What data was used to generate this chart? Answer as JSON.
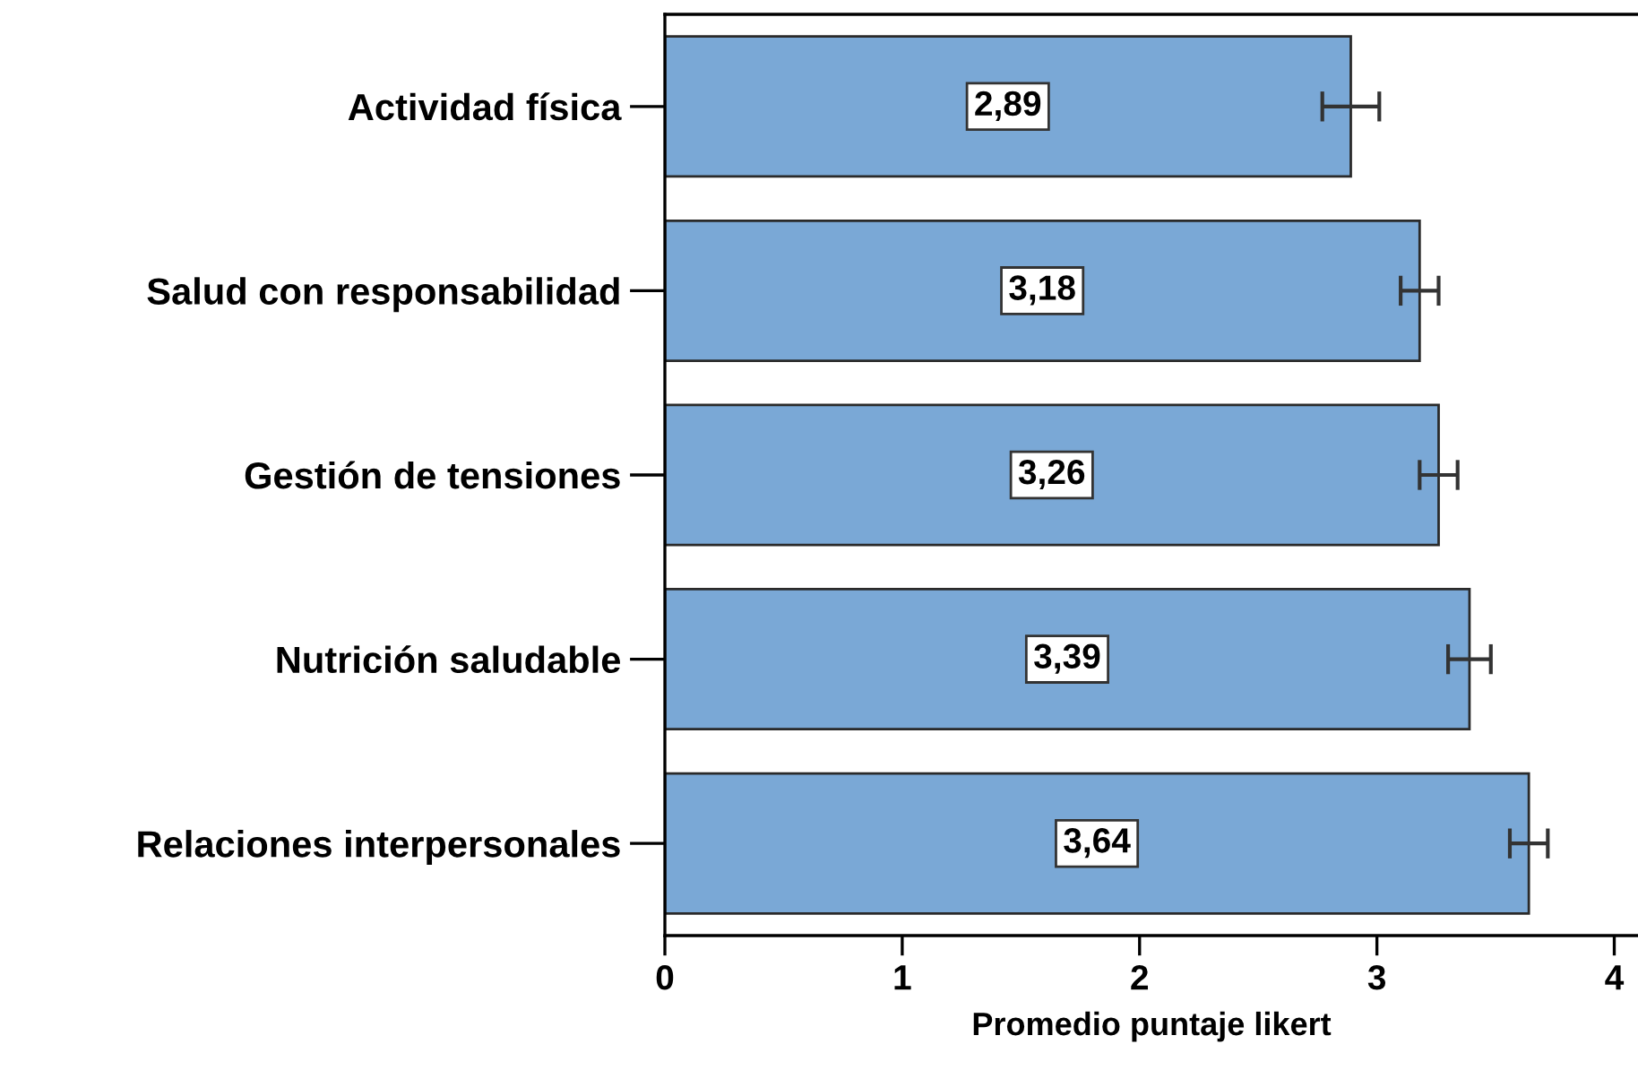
{
  "chart_data": {
    "type": "bar",
    "orientation": "horizontal",
    "xlabel": "Promedio puntaje likert",
    "categories": [
      "Actividad física",
      "Salud con responsabilidad",
      "Gestión de tensiones",
      "Nutrición saludable",
      "Relaciones interpersonales"
    ],
    "values": [
      2.89,
      3.18,
      3.26,
      3.39,
      3.64
    ],
    "errors": [
      0.12,
      0.08,
      0.08,
      0.09,
      0.08
    ],
    "value_labels": [
      "2,89",
      "3,18",
      "3,26",
      "3,39",
      "3,64"
    ],
    "color": "#7aa8d6",
    "xlim": [
      0,
      4.1
    ],
    "xticks": [
      0,
      1,
      2,
      3,
      4
    ],
    "grid": false,
    "legend": false
  }
}
